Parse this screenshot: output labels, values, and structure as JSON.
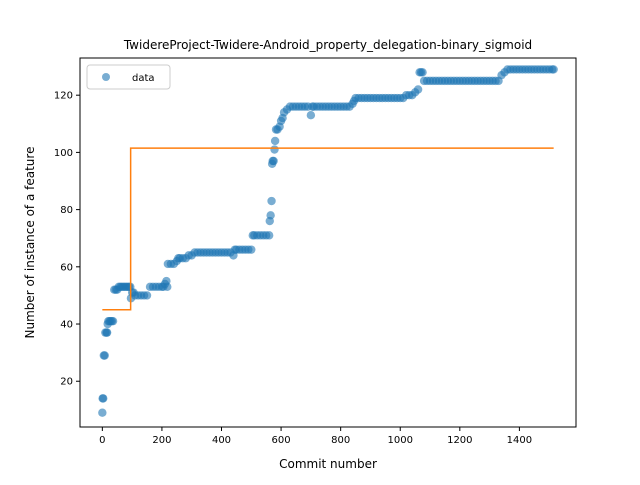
{
  "chart_data": {
    "type": "scatter",
    "title": "TwidereProject-Twidere-Android_property_delegation-binary_sigmoid",
    "xlabel": "Commit number",
    "ylabel": "Number of instance of a feature",
    "xlim": [
      -75,
      1590
    ],
    "ylim": [
      4,
      133
    ],
    "x_ticks": [
      0,
      200,
      400,
      600,
      800,
      1000,
      1200,
      1400
    ],
    "y_ticks": [
      20,
      40,
      60,
      80,
      100,
      120
    ],
    "grid": false,
    "legend": {
      "position": "top-left",
      "entries": [
        "data"
      ]
    },
    "colors": {
      "data": "#1f77b4",
      "fit": "#ff7f0e"
    },
    "series": [
      {
        "name": "data",
        "kind": "scatter",
        "points": [
          [
            0,
            9
          ],
          [
            1,
            14
          ],
          [
            3,
            14
          ],
          [
            5,
            29
          ],
          [
            8,
            29
          ],
          [
            10,
            37
          ],
          [
            14,
            37
          ],
          [
            16,
            37
          ],
          [
            18,
            40
          ],
          [
            20,
            41
          ],
          [
            24,
            41
          ],
          [
            28,
            41
          ],
          [
            32,
            41
          ],
          [
            36,
            41
          ],
          [
            40,
            52
          ],
          [
            45,
            52
          ],
          [
            50,
            52
          ],
          [
            55,
            53
          ],
          [
            60,
            53
          ],
          [
            65,
            53
          ],
          [
            70,
            53
          ],
          [
            75,
            53
          ],
          [
            80,
            53
          ],
          [
            85,
            53
          ],
          [
            90,
            53
          ],
          [
            94,
            53
          ],
          [
            96,
            49
          ],
          [
            100,
            51
          ],
          [
            105,
            51
          ],
          [
            110,
            50
          ],
          [
            120,
            50
          ],
          [
            130,
            50
          ],
          [
            140,
            50
          ],
          [
            150,
            50
          ],
          [
            160,
            53
          ],
          [
            170,
            53
          ],
          [
            180,
            53
          ],
          [
            190,
            53
          ],
          [
            200,
            53
          ],
          [
            205,
            53
          ],
          [
            210,
            54
          ],
          [
            215,
            55
          ],
          [
            218,
            53
          ],
          [
            220,
            61
          ],
          [
            230,
            61
          ],
          [
            240,
            61
          ],
          [
            250,
            62
          ],
          [
            255,
            63
          ],
          [
            260,
            63
          ],
          [
            270,
            63
          ],
          [
            280,
            63
          ],
          [
            290,
            64
          ],
          [
            300,
            64
          ],
          [
            310,
            65
          ],
          [
            320,
            65
          ],
          [
            330,
            65
          ],
          [
            340,
            65
          ],
          [
            350,
            65
          ],
          [
            360,
            65
          ],
          [
            370,
            65
          ],
          [
            380,
            65
          ],
          [
            390,
            65
          ],
          [
            400,
            65
          ],
          [
            410,
            65
          ],
          [
            420,
            65
          ],
          [
            430,
            65
          ],
          [
            440,
            64
          ],
          [
            445,
            66
          ],
          [
            450,
            66
          ],
          [
            460,
            66
          ],
          [
            470,
            66
          ],
          [
            480,
            66
          ],
          [
            490,
            66
          ],
          [
            500,
            66
          ],
          [
            505,
            71
          ],
          [
            510,
            71
          ],
          [
            520,
            71
          ],
          [
            530,
            71
          ],
          [
            540,
            71
          ],
          [
            550,
            71
          ],
          [
            560,
            71
          ],
          [
            562,
            76
          ],
          [
            565,
            78
          ],
          [
            568,
            83
          ],
          [
            570,
            96
          ],
          [
            572,
            97
          ],
          [
            575,
            97
          ],
          [
            578,
            101
          ],
          [
            580,
            104
          ],
          [
            583,
            108
          ],
          [
            588,
            108
          ],
          [
            595,
            109
          ],
          [
            600,
            111
          ],
          [
            605,
            112
          ],
          [
            610,
            114
          ],
          [
            620,
            115
          ],
          [
            630,
            116
          ],
          [
            640,
            116
          ],
          [
            650,
            116
          ],
          [
            660,
            116
          ],
          [
            670,
            116
          ],
          [
            680,
            116
          ],
          [
            690,
            116
          ],
          [
            700,
            113
          ],
          [
            705,
            116
          ],
          [
            710,
            116
          ],
          [
            720,
            116
          ],
          [
            730,
            116
          ],
          [
            740,
            116
          ],
          [
            750,
            116
          ],
          [
            760,
            116
          ],
          [
            770,
            116
          ],
          [
            780,
            116
          ],
          [
            790,
            116
          ],
          [
            800,
            116
          ],
          [
            810,
            116
          ],
          [
            820,
            116
          ],
          [
            830,
            116
          ],
          [
            840,
            117
          ],
          [
            845,
            118
          ],
          [
            850,
            119
          ],
          [
            860,
            119
          ],
          [
            870,
            119
          ],
          [
            880,
            119
          ],
          [
            890,
            119
          ],
          [
            900,
            119
          ],
          [
            910,
            119
          ],
          [
            920,
            119
          ],
          [
            930,
            119
          ],
          [
            940,
            119
          ],
          [
            950,
            119
          ],
          [
            960,
            119
          ],
          [
            970,
            119
          ],
          [
            980,
            119
          ],
          [
            990,
            119
          ],
          [
            1000,
            119
          ],
          [
            1010,
            119
          ],
          [
            1020,
            120
          ],
          [
            1030,
            120
          ],
          [
            1040,
            120
          ],
          [
            1050,
            121
          ],
          [
            1060,
            122
          ],
          [
            1065,
            128
          ],
          [
            1070,
            128
          ],
          [
            1075,
            128
          ],
          [
            1080,
            125
          ],
          [
            1090,
            125
          ],
          [
            1100,
            125
          ],
          [
            1110,
            125
          ],
          [
            1120,
            125
          ],
          [
            1130,
            125
          ],
          [
            1140,
            125
          ],
          [
            1150,
            125
          ],
          [
            1160,
            125
          ],
          [
            1170,
            125
          ],
          [
            1180,
            125
          ],
          [
            1190,
            125
          ],
          [
            1200,
            125
          ],
          [
            1210,
            125
          ],
          [
            1220,
            125
          ],
          [
            1230,
            125
          ],
          [
            1240,
            125
          ],
          [
            1250,
            125
          ],
          [
            1260,
            125
          ],
          [
            1270,
            125
          ],
          [
            1280,
            125
          ],
          [
            1290,
            125
          ],
          [
            1300,
            125
          ],
          [
            1310,
            125
          ],
          [
            1320,
            125
          ],
          [
            1330,
            125
          ],
          [
            1340,
            127
          ],
          [
            1350,
            128
          ],
          [
            1360,
            129
          ],
          [
            1370,
            129
          ],
          [
            1380,
            129
          ],
          [
            1390,
            129
          ],
          [
            1400,
            129
          ],
          [
            1410,
            129
          ],
          [
            1420,
            129
          ],
          [
            1430,
            129
          ],
          [
            1440,
            129
          ],
          [
            1450,
            129
          ],
          [
            1460,
            129
          ],
          [
            1470,
            129
          ],
          [
            1480,
            129
          ],
          [
            1490,
            129
          ],
          [
            1500,
            129
          ],
          [
            1510,
            129
          ],
          [
            1515,
            129
          ]
        ]
      },
      {
        "kind": "step-line",
        "points": [
          [
            0,
            45
          ],
          [
            95,
            45
          ],
          [
            95,
            101.5
          ],
          [
            1515,
            101.5
          ]
        ]
      }
    ]
  }
}
